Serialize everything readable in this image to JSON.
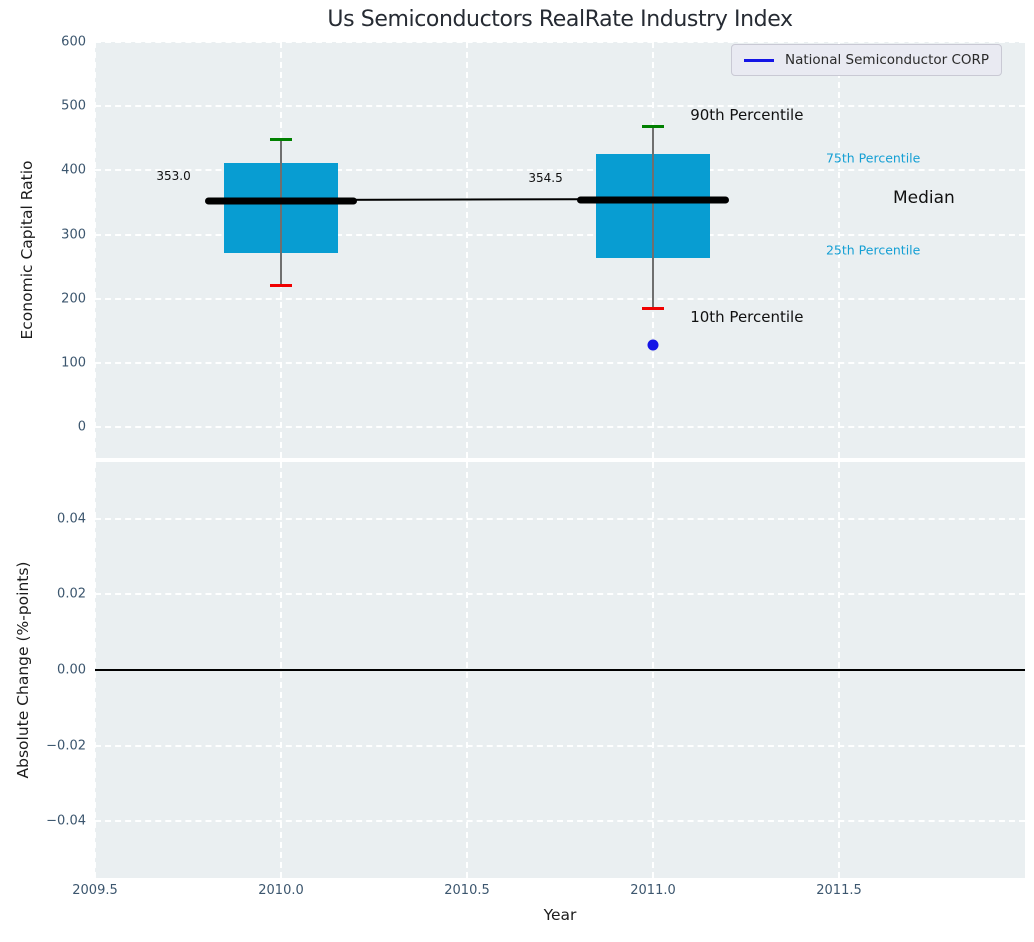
{
  "title": "Us Semiconductors RealRate Industry Index",
  "xlabel": "Year",
  "legend": {
    "label": "National Semiconductor CORP",
    "line_color": "#1414e6"
  },
  "colors": {
    "plot_bg": "#eaeff1",
    "grid": "#ffffff",
    "tick_label": "#3c566e",
    "box_fill": "#089dd2",
    "whisker_line": "#6f6f6f",
    "whisker_high_cap": "#008000",
    "whisker_low_cap": "#f00000",
    "median_line": "#000000",
    "company_point": "#1414e6",
    "percentile_label": "#149fd4",
    "annotation_text": "#111111"
  },
  "chart_data": [
    {
      "type": "boxplot",
      "name": "economic-capital-ratio",
      "title": "Us Semiconductors RealRate Industry Index",
      "ylabel": "Economic Capital Ratio",
      "xlabel": "Year",
      "xlim": [
        2009.5,
        2012.0
      ],
      "ylim": [
        -48,
        600
      ],
      "grid": true,
      "legend_position": "upper right",
      "xticks": {
        "values": [
          2009.5,
          2010.0,
          2010.5,
          2011.0,
          2011.5
        ],
        "labels": [
          "2009.5",
          "2010.0",
          "2010.5",
          "2011.0",
          "2011.5"
        ]
      },
      "yticks": {
        "values": [
          0,
          100,
          200,
          300,
          400,
          500,
          600
        ],
        "labels": [
          "0",
          "100",
          "200",
          "300",
          "400",
          "500",
          "600"
        ]
      },
      "boxes": [
        {
          "x": 2010.0,
          "box_halfwidth": 0.152,
          "median": 353.0,
          "q1": 272,
          "q3": 412,
          "whisker_low": 220,
          "whisker_high": 448
        },
        {
          "x": 2011.0,
          "box_halfwidth": 0.152,
          "median": 354.5,
          "q1": 263,
          "q3": 425,
          "whisker_low": 185,
          "whisker_high": 468
        }
      ],
      "median_halfwidth": 0.205,
      "series": [
        {
          "name": "National Semiconductor CORP",
          "points": [
            {
              "x": 2011.0,
              "y": 128
            }
          ]
        }
      ],
      "annotations": [
        {
          "text": "353.0",
          "x": 2009.665,
          "y": 391,
          "size": 12,
          "color": "#111111"
        },
        {
          "text": "354.5",
          "x": 2010.665,
          "y": 388,
          "size": 12,
          "color": "#111111"
        },
        {
          "text": "90th Percentile",
          "x": 2011.1,
          "y": 486,
          "size": 15,
          "color": "#111111"
        },
        {
          "text": "10th Percentile",
          "x": 2011.1,
          "y": 172,
          "size": 15,
          "color": "#111111"
        },
        {
          "text": "75th Percentile",
          "x": 2011.465,
          "y": 419,
          "size": 12.5,
          "color": "#149fd4"
        },
        {
          "text": "25th Percentile",
          "x": 2011.465,
          "y": 276,
          "size": 12.5,
          "color": "#149fd4"
        },
        {
          "text": "Median",
          "x": 2011.645,
          "y": 357,
          "size": 17,
          "color": "#111111"
        }
      ]
    },
    {
      "type": "line",
      "name": "absolute-change",
      "ylabel": "Absolute Change (%-points)",
      "xlim": [
        2009.5,
        2012.0
      ],
      "ylim": [
        -0.055,
        0.055
      ],
      "grid": true,
      "yticks": {
        "values": [
          -0.04,
          -0.02,
          0,
          0.02,
          0.04
        ],
        "labels": [
          "−0.04",
          "−0.02",
          "0.00",
          "0.02",
          "0.04"
        ]
      },
      "zero_line": 0.0
    }
  ]
}
